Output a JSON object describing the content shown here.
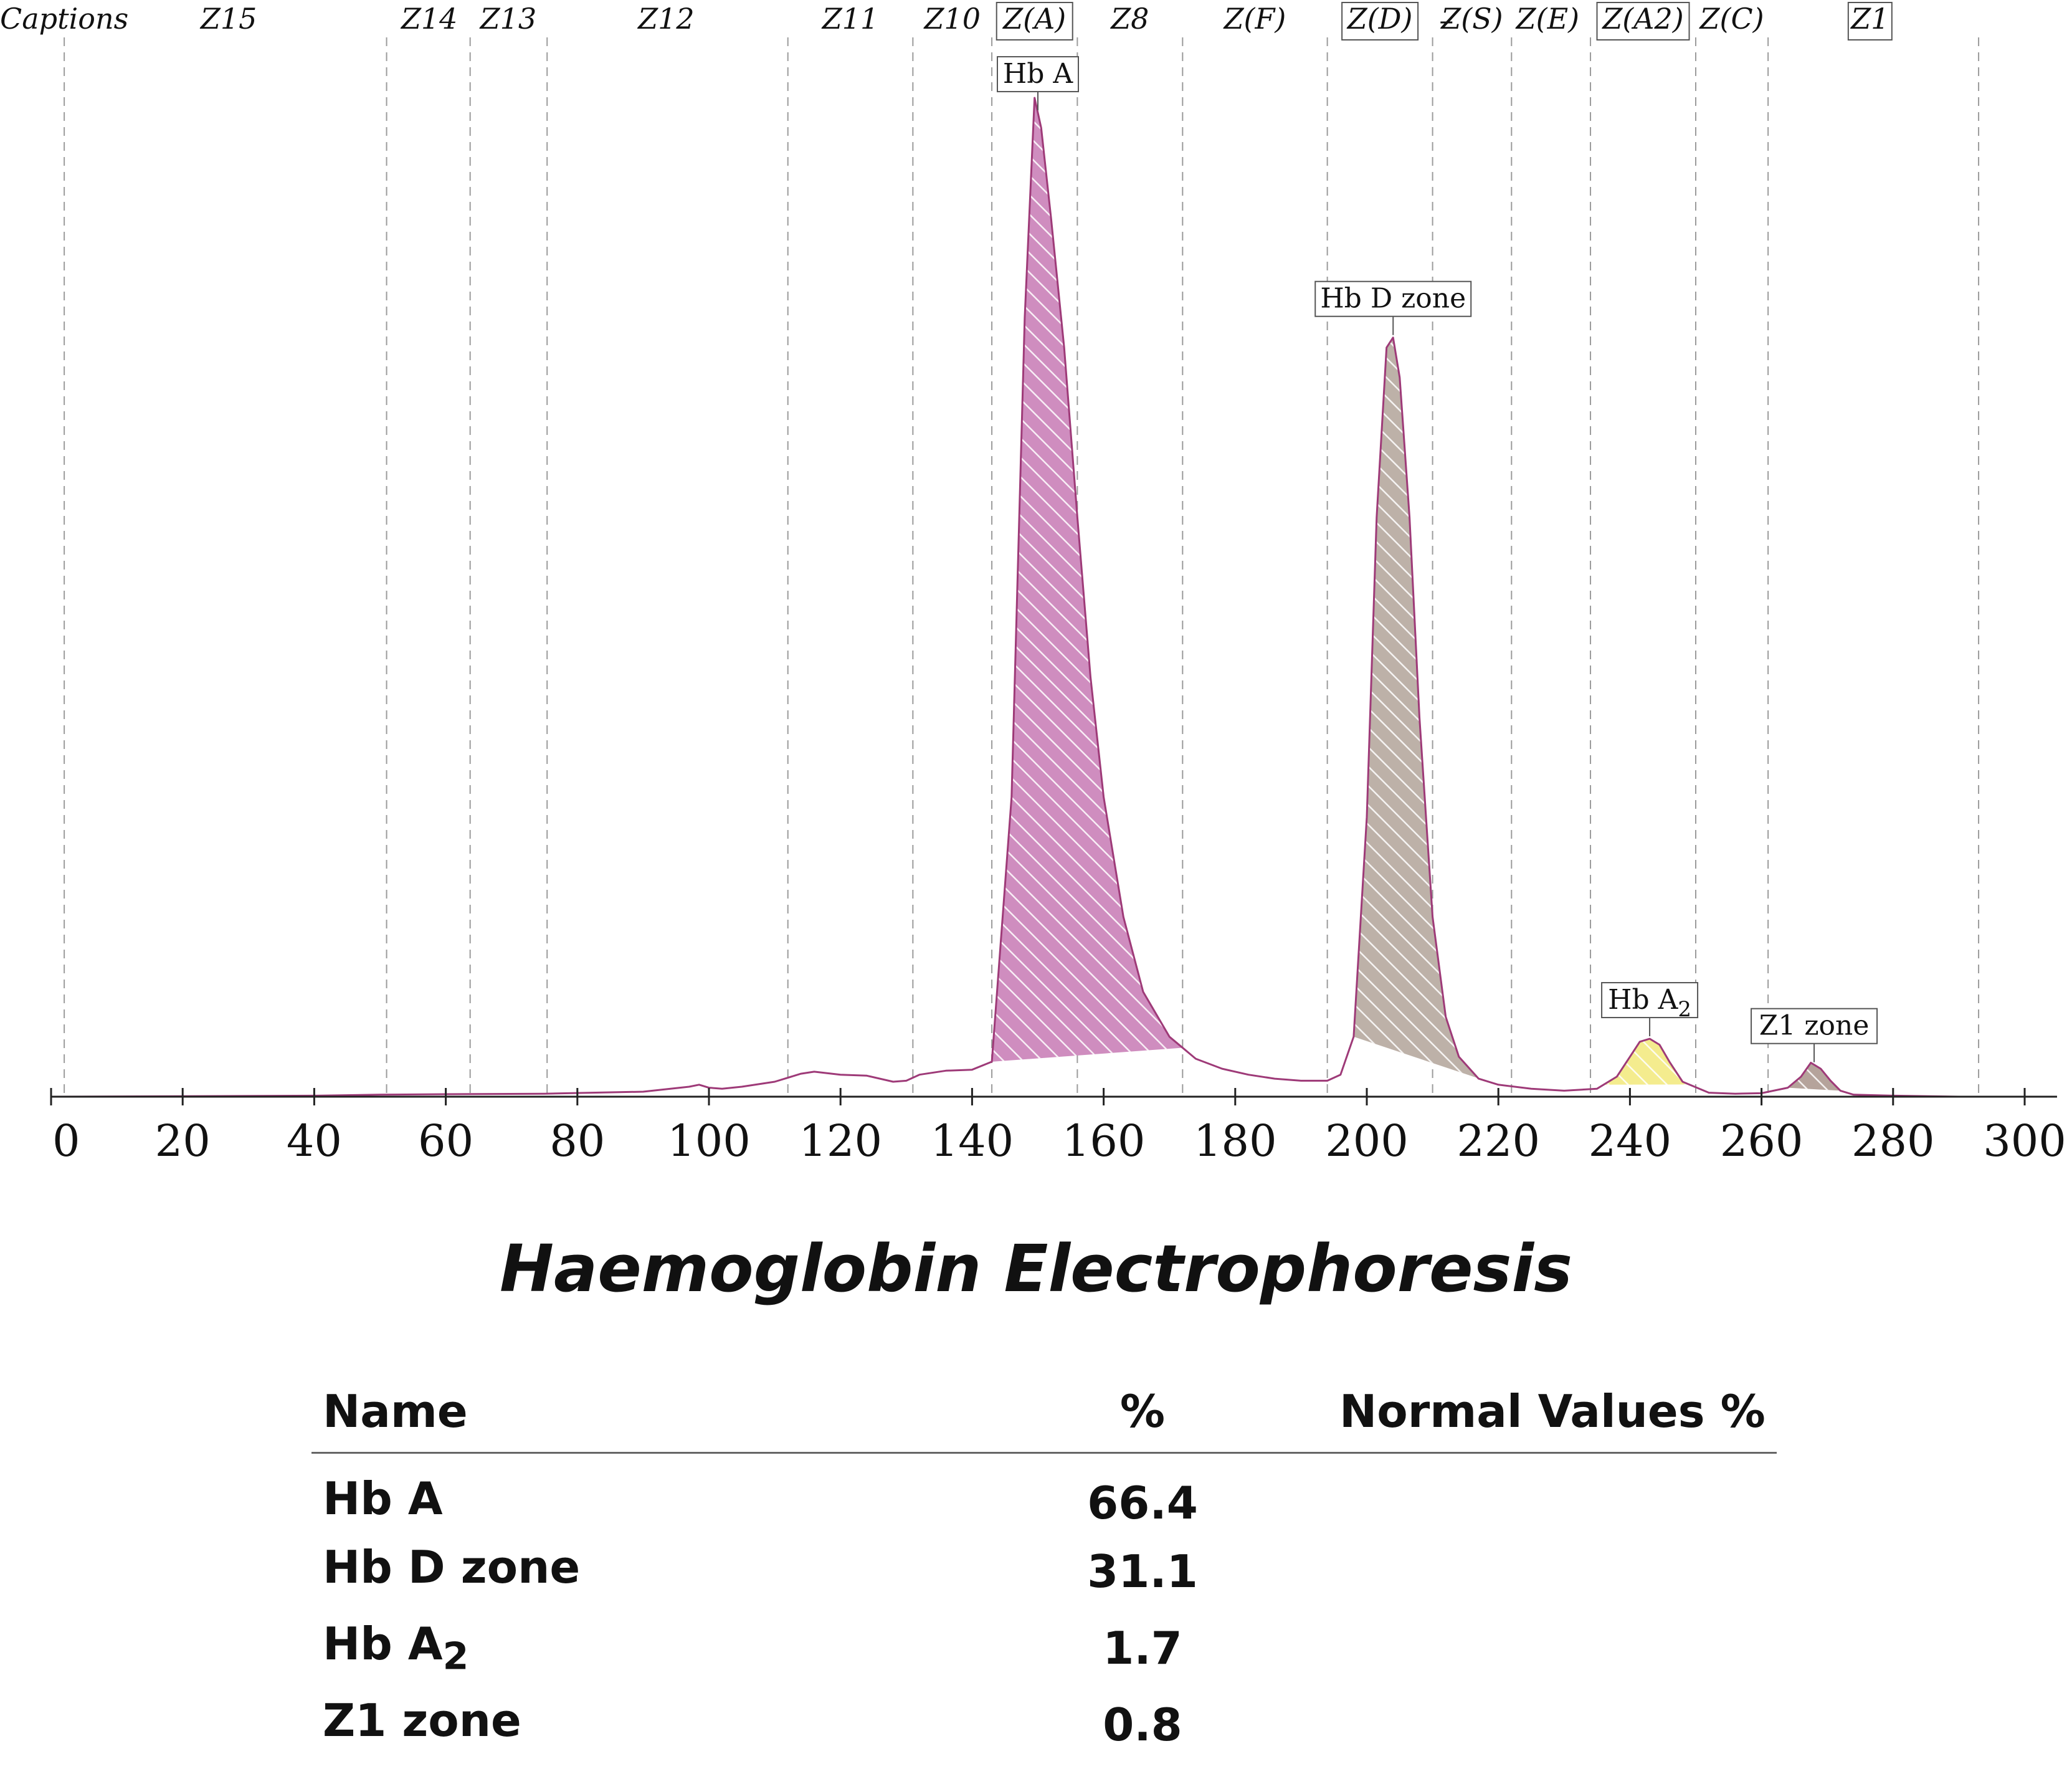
{
  "chart_data": {
    "type": "area",
    "title": "Haemoglobin Electrophoresis",
    "xlabel": "",
    "ylabel": "",
    "xlim": [
      0,
      300
    ],
    "x_ticks": [
      0,
      20,
      40,
      60,
      80,
      100,
      120,
      140,
      160,
      180,
      200,
      220,
      240,
      260,
      280,
      300
    ],
    "x_tick_labels": [
      "0",
      "20",
      "40",
      "60",
      "80",
      "100",
      "120",
      "140",
      "160",
      "180",
      "200",
      "220",
      "240",
      "260",
      "280",
      "300"
    ],
    "ylim": [
      0,
      100
    ],
    "zone_boundaries": [
      2,
      51,
      63.7,
      75.4,
      112,
      131,
      143,
      156,
      172,
      194,
      210,
      222,
      234,
      250,
      261,
      293
    ],
    "captions": [
      {
        "text": "Captions",
        "x": -0.6,
        "boxed": false
      },
      {
        "text": "Z15",
        "x": 27,
        "boxed": false
      },
      {
        "text": "Z14",
        "x": 57.5,
        "boxed": false
      },
      {
        "text": "Z13",
        "x": 69.5,
        "boxed": false
      },
      {
        "text": "Z12",
        "x": 93.5,
        "boxed": false
      },
      {
        "text": "Z11",
        "x": 121.5,
        "boxed": false
      },
      {
        "text": "Z10",
        "x": 137,
        "boxed": false
      },
      {
        "text": "Z(A)",
        "x": 149.5,
        "boxed": true
      },
      {
        "text": "Z8",
        "x": 164,
        "boxed": false
      },
      {
        "text": "Z(F)",
        "x": 183,
        "boxed": false
      },
      {
        "text": "Z(D)",
        "x": 202,
        "boxed": true
      },
      {
        "text": "Z(S)",
        "x": 216,
        "boxed": false
      },
      {
        "text": "Z(E)",
        "x": 227.5,
        "boxed": false
      },
      {
        "text": "Z(A2)",
        "x": 242,
        "boxed": true
      },
      {
        "text": "Z(C)",
        "x": 255.5,
        "boxed": false
      },
      {
        "text": "Z1",
        "x": 276.5,
        "boxed": true
      }
    ],
    "series": [
      {
        "name": "Densitometry trace",
        "x": [
          0,
          20,
          40,
          50,
          60,
          75,
          90,
          97,
          98.5,
          100,
          102,
          105,
          110,
          114,
          116,
          120,
          124,
          128,
          130,
          132,
          136,
          140,
          143,
          146,
          148,
          149.5,
          150.5,
          152,
          154,
          156,
          158,
          160,
          163,
          166,
          170,
          174,
          178,
          182,
          186,
          190,
          194,
          196,
          198,
          200,
          201.5,
          203,
          204,
          205,
          206.5,
          208,
          210,
          212,
          214,
          217,
          220,
          225,
          230,
          235,
          238,
          240,
          241.5,
          243,
          244.5,
          246,
          248,
          252,
          256,
          260,
          264,
          266,
          267.5,
          269,
          270.5,
          272,
          274,
          280,
          290,
          300
        ],
        "y": [
          0,
          0.05,
          0.1,
          0.2,
          0.25,
          0.3,
          0.5,
          1.0,
          1.2,
          0.9,
          0.8,
          1.0,
          1.5,
          2.3,
          2.5,
          2.2,
          2.1,
          1.5,
          1.6,
          2.2,
          2.6,
          2.7,
          3.5,
          30,
          78,
          100,
          97,
          88,
          75,
          58,
          42,
          30,
          18,
          10.5,
          6,
          3.8,
          2.8,
          2.2,
          1.8,
          1.6,
          1.6,
          2.2,
          6,
          28,
          58,
          75,
          76,
          72,
          58,
          38,
          18,
          8,
          4,
          1.8,
          1.2,
          0.8,
          0.6,
          0.8,
          2,
          4,
          5.5,
          5.8,
          5.2,
          3.5,
          1.5,
          0.4,
          0.3,
          0.35,
          0.9,
          2,
          3.4,
          2.8,
          1.6,
          0.6,
          0.2,
          0.1,
          0,
          0
        ]
      }
    ],
    "peaks": [
      {
        "name": "Hb A",
        "x": 150,
        "range": [
          143,
          172
        ],
        "color": "#cf8dbf"
      },
      {
        "name": "Hb D zone",
        "x": 204,
        "range": [
          198,
          219
        ],
        "color": "#bdb1a8"
      },
      {
        "name": "Hb A2",
        "x": 243,
        "range": [
          236,
          249
        ],
        "color": "#f4ec8e"
      },
      {
        "name": "Z1 zone",
        "x": 268,
        "range": [
          264,
          272
        ],
        "color": "#b5a39b"
      }
    ],
    "colors": {
      "trace": "#9e3a78",
      "zone_line": "#9b9b9b",
      "axis": "#222222"
    }
  },
  "report": {
    "title": "Haemoglobin Electrophoresis",
    "headers": {
      "name": "Name",
      "percent": "%",
      "normal": "Normal Values %"
    },
    "rows": [
      {
        "name": "Hb A",
        "name_sub": "",
        "percent": "66.4",
        "normal": ""
      },
      {
        "name": "Hb D zone",
        "name_sub": "",
        "percent": "31.1",
        "normal": ""
      },
      {
        "name": "Hb A",
        "name_sub": "2",
        "percent": "1.7",
        "normal": ""
      },
      {
        "name": "Z1 zone",
        "name_sub": "",
        "percent": "0.8",
        "normal": ""
      }
    ]
  }
}
